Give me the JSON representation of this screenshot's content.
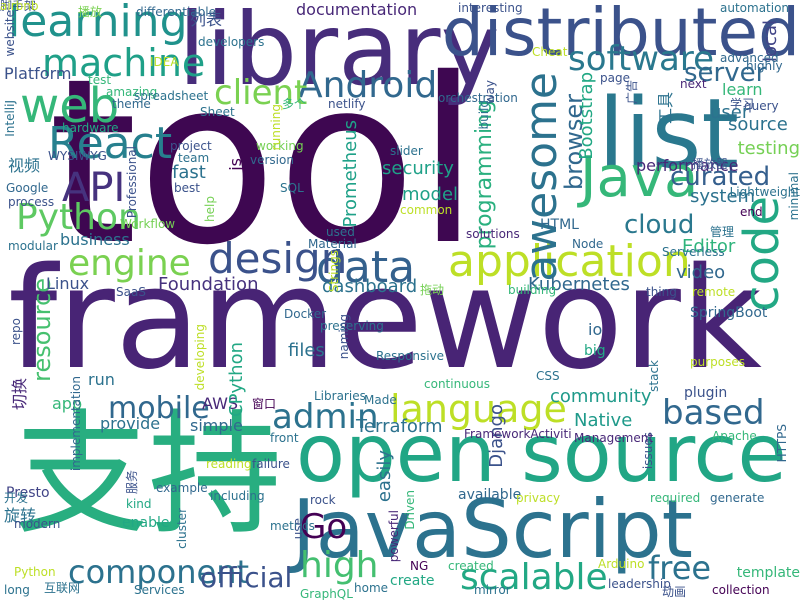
{
  "cloud": {
    "words": [
      {
        "text": "tool",
        "color": "#3e0751"
      },
      {
        "text": "framework",
        "color": "#482475"
      },
      {
        "text": "library",
        "color": "#472d7b"
      },
      {
        "text": "open source",
        "color": "#21a685"
      },
      {
        "text": "JavaScript",
        "color": "#2c728e"
      },
      {
        "text": "支持",
        "color": "#28ae80"
      },
      {
        "text": "distributed",
        "color": "#3b528b"
      },
      {
        "text": "list",
        "color": "#2a788e"
      },
      {
        "text": "application",
        "color": "#bddf26"
      },
      {
        "text": "Java",
        "color": "#35b779"
      },
      {
        "text": "learning",
        "color": "#20928c"
      },
      {
        "text": "machine",
        "color": "#1fa088"
      },
      {
        "text": "web",
        "color": "#35b779"
      },
      {
        "text": "React",
        "color": "#27808e"
      },
      {
        "text": "Android",
        "color": "#31688e"
      },
      {
        "text": "software",
        "color": "#2a788e"
      },
      {
        "text": "data",
        "color": "#34618d"
      },
      {
        "text": "design",
        "color": "#3b528b"
      },
      {
        "text": "engine",
        "color": "#7ad151"
      },
      {
        "text": "Python",
        "color": "#5ec962"
      },
      {
        "text": "API",
        "color": "#46327e"
      },
      {
        "text": "client",
        "color": "#7ad151"
      },
      {
        "text": "awesome",
        "color": "#2c728e"
      },
      {
        "text": "code",
        "color": "#22a884"
      },
      {
        "text": "language",
        "color": "#bddf26"
      },
      {
        "text": "based",
        "color": "#31688e"
      },
      {
        "text": "admin",
        "color": "#2c728e"
      },
      {
        "text": "mobile",
        "color": "#31688e"
      },
      {
        "text": "Go",
        "color": "#440154"
      },
      {
        "text": "high",
        "color": "#44bf70"
      },
      {
        "text": "scalable",
        "color": "#22a884"
      },
      {
        "text": "free",
        "color": "#2c728e"
      },
      {
        "text": "component",
        "color": "#2c728e"
      },
      {
        "text": "official",
        "color": "#3b528b"
      },
      {
        "text": "server",
        "color": "#31688e"
      },
      {
        "text": "curated",
        "color": "#355f8d"
      },
      {
        "text": "cloud",
        "color": "#2a788e"
      },
      {
        "text": "browser",
        "color": "#31688e"
      },
      {
        "text": "resource",
        "color": "#46c06f"
      },
      {
        "text": "Kubernetes",
        "color": "#31688e"
      },
      {
        "text": "dashboard",
        "color": "#2c728e"
      },
      {
        "text": "Foundation",
        "color": "#46327e"
      },
      {
        "text": "Terraform",
        "color": "#2c728e"
      },
      {
        "text": "Native",
        "color": "#1f9a8a"
      },
      {
        "text": "community",
        "color": "#1f9a8a"
      },
      {
        "text": "programming",
        "color": "#2ab07f"
      },
      {
        "text": "security",
        "color": "#1fa188"
      },
      {
        "text": "model",
        "color": "#1fa188"
      },
      {
        "text": "Prometheus",
        "color": "#1fa188"
      },
      {
        "text": "Editor",
        "color": "#2fb47c"
      },
      {
        "text": "video",
        "color": "#31688e"
      },
      {
        "text": "system",
        "color": "#2c728e"
      },
      {
        "text": "testing",
        "color": "#75d054"
      },
      {
        "text": "source",
        "color": "#2c728e"
      },
      {
        "text": "learn",
        "color": "#35b779"
      },
      {
        "text": "user",
        "color": "#2c728e"
      },
      {
        "text": "local",
        "color": "#414487"
      },
      {
        "text": "Bootstrap",
        "color": "#22a884"
      },
      {
        "text": "Platform",
        "color": "#3b528b"
      },
      {
        "text": "fast",
        "color": "#2c728e"
      },
      {
        "text": "视频",
        "color": "#2c728e"
      },
      {
        "text": "documentation",
        "color": "#482878"
      },
      {
        "text": "列表",
        "color": "#3b528b"
      },
      {
        "text": "Linux",
        "color": "#3b528b"
      },
      {
        "text": "business",
        "color": "#2c728e"
      },
      {
        "text": "run",
        "color": "#2c728e"
      },
      {
        "text": "app",
        "color": "#35b779"
      },
      {
        "text": "provide",
        "color": "#2c728e"
      },
      {
        "text": "AWS",
        "color": "#482878"
      },
      {
        "text": "CPython",
        "color": "#22a884"
      },
      {
        "text": "files",
        "color": "#2c728e"
      },
      {
        "text": "io",
        "color": "#31688e"
      },
      {
        "text": "big",
        "color": "#22a884"
      },
      {
        "text": "Django",
        "color": "#3b528b"
      },
      {
        "text": "HTML",
        "color": "#31688e"
      },
      {
        "text": "available",
        "color": "#31688e"
      },
      {
        "text": "enable",
        "color": "#22a884"
      },
      {
        "text": "easily",
        "color": "#2c728e"
      },
      {
        "text": "create",
        "color": "#22a884"
      },
      {
        "text": "template",
        "color": "#35b779"
      },
      {
        "text": "simple",
        "color": "#31688e"
      },
      {
        "text": "旋转",
        "color": "#2c728e"
      },
      {
        "text": "切换",
        "color": "#482878"
      },
      {
        "text": "Presto",
        "color": "#414487"
      },
      {
        "text": "SpringBoot",
        "color": "#31688e"
      },
      {
        "text": "plugin",
        "color": "#3b528b"
      },
      {
        "text": "performance",
        "color": "#482878"
      },
      {
        "text": "工具",
        "color": "#2c728e"
      },
      {
        "text": "js",
        "color": "#440154"
      },
      {
        "text": "播放",
        "color": "#7ad151"
      },
      {
        "text": "differentiable",
        "color": "#31688e"
      },
      {
        "text": "website",
        "color": "#3b528b"
      },
      {
        "text": "hardware",
        "color": "#22a884"
      },
      {
        "text": "IntelliJ",
        "color": "#2c728e"
      },
      {
        "text": "Google",
        "color": "#31688e"
      },
      {
        "text": "process",
        "color": "#3b528b"
      },
      {
        "text": "modular",
        "color": "#2c728e"
      },
      {
        "text": "test",
        "color": "#35b779"
      },
      {
        "text": "amazing",
        "color": "#35b779"
      },
      {
        "text": "theme",
        "color": "#31688e"
      },
      {
        "text": "IDEA",
        "color": "#bddf26"
      },
      {
        "text": "developers",
        "color": "#2c728e"
      },
      {
        "text": "Sheet",
        "color": "#2c728e"
      },
      {
        "text": "project",
        "color": "#3b528b"
      },
      {
        "text": "team",
        "color": "#2c728e"
      },
      {
        "text": "best",
        "color": "#3b528b"
      },
      {
        "text": "help",
        "color": "#75d054"
      },
      {
        "text": "version",
        "color": "#31688e"
      },
      {
        "text": "working",
        "color": "#75d054"
      },
      {
        "text": "SQL",
        "color": "#2c728e"
      },
      {
        "text": "多个",
        "color": "#35b779"
      },
      {
        "text": "netlify",
        "color": "#3b528b"
      },
      {
        "text": "orchestration",
        "color": "#31688e"
      },
      {
        "text": "slider",
        "color": "#2c728e"
      },
      {
        "text": "common",
        "color": "#bddf26"
      },
      {
        "text": "used",
        "color": "#2c728e"
      },
      {
        "text": "Material",
        "color": "#31688e"
      },
      {
        "text": "solutions",
        "color": "#482878"
      },
      {
        "text": "Strings",
        "color": "#bddf26"
      },
      {
        "text": "SaaS",
        "color": "#3b528b"
      },
      {
        "text": "Docker",
        "color": "#31688e"
      },
      {
        "text": "拖动",
        "color": "#75d054"
      },
      {
        "text": "building",
        "color": "#35b779"
      },
      {
        "text": "thing",
        "color": "#3b528b"
      },
      {
        "text": "remote",
        "color": "#bddf26"
      },
      {
        "text": "管理",
        "color": "#2c728e"
      },
      {
        "text": "Node",
        "color": "#31688e"
      },
      {
        "text": "end",
        "color": "#440154"
      },
      {
        "text": "query",
        "color": "#3b528b"
      },
      {
        "text": "next",
        "color": "#482878"
      },
      {
        "text": "advanced",
        "color": "#31688e"
      },
      {
        "text": "highly",
        "color": "#31688e"
      },
      {
        "text": "minimal",
        "color": "#2c728e"
      },
      {
        "text": "Lightweight",
        "color": "#2c728e"
      },
      {
        "text": "播放器",
        "color": "#3b528b"
      },
      {
        "text": "广告",
        "color": "#3b528b"
      },
      {
        "text": "Serverless",
        "color": "#2c728e"
      },
      {
        "text": "purposes",
        "color": "#bddf26"
      },
      {
        "text": "repo",
        "color": "#3b528b"
      },
      {
        "text": "Responsive",
        "color": "#2c728e"
      },
      {
        "text": "continuous",
        "color": "#35b779"
      },
      {
        "text": "CSS",
        "color": "#2c728e"
      },
      {
        "text": "stack",
        "color": "#2c728e"
      },
      {
        "text": "preserving",
        "color": "#2c728e"
      },
      {
        "text": "naming",
        "color": "#3b528b"
      },
      {
        "text": "developing",
        "color": "#bddf26"
      },
      {
        "text": "implementation",
        "color": "#31688e"
      },
      {
        "text": "Libraries",
        "color": "#2c728e"
      },
      {
        "text": "Made",
        "color": "#2c728e"
      },
      {
        "text": "窗口",
        "color": "#440154"
      },
      {
        "text": "front",
        "color": "#2c728e"
      },
      {
        "text": "failure",
        "color": "#3b528b"
      },
      {
        "text": "reading",
        "color": "#bddf26"
      },
      {
        "text": "issues",
        "color": "#3b528b"
      },
      {
        "text": "HTTPS",
        "color": "#31688e"
      },
      {
        "text": "Apache",
        "color": "#35b779"
      },
      {
        "text": "Management",
        "color": "#482878"
      },
      {
        "text": "FrameworkActiviti",
        "color": "#482878"
      },
      {
        "text": "including",
        "color": "#2c728e"
      },
      {
        "text": "example",
        "color": "#31688e"
      },
      {
        "text": "kind",
        "color": "#22a884"
      },
      {
        "text": "服务",
        "color": "#3b528b"
      },
      {
        "text": "开发",
        "color": "#2c728e"
      },
      {
        "text": "rock",
        "color": "#3b528b"
      },
      {
        "text": "privacy",
        "color": "#bddf26"
      },
      {
        "text": "required",
        "color": "#35b779"
      },
      {
        "text": "generate",
        "color": "#31688e"
      },
      {
        "text": "Driven",
        "color": "#35b779"
      },
      {
        "text": "powerful",
        "color": "#482878"
      },
      {
        "text": "cluster",
        "color": "#2c728e"
      },
      {
        "text": "metrics",
        "color": "#2c728e"
      },
      {
        "text": "use",
        "color": "#3b528b"
      },
      {
        "text": "modern",
        "color": "#3b528b"
      },
      {
        "text": "Python",
        "color": "#bddf26"
      },
      {
        "text": "long",
        "color": "#2c728e"
      },
      {
        "text": "互联网",
        "color": "#2c728e"
      },
      {
        "text": "Services",
        "color": "#2c728e"
      },
      {
        "text": "GraphQL",
        "color": "#35b779"
      },
      {
        "text": "home",
        "color": "#2c728e"
      },
      {
        "text": "NG",
        "color": "#440154"
      },
      {
        "text": "created",
        "color": "#35b779"
      },
      {
        "text": "mirror",
        "color": "#2c728e"
      },
      {
        "text": "Arduino",
        "color": "#bddf26"
      },
      {
        "text": "leadership",
        "color": "#3b528b"
      },
      {
        "text": "动画",
        "color": "#3b528b"
      },
      {
        "text": "collection",
        "color": "#440154"
      },
      {
        "text": "automation",
        "color": "#2c728e"
      },
      {
        "text": "interesting",
        "color": "#3b528b"
      },
      {
        "text": "way",
        "color": "#3b528b"
      },
      {
        "text": "Cheat",
        "color": "#bddf26"
      },
      {
        "text": "running",
        "color": "#bddf26"
      },
      {
        "text": "build",
        "color": "#2c728e"
      },
      {
        "text": "page",
        "color": "#3b528b"
      },
      {
        "text": "WYSIWYG",
        "color": "#3b528b"
      },
      {
        "text": "Professional",
        "color": "#3b528b"
      },
      {
        "text": "Workflow",
        "color": "#75d054"
      },
      {
        "text": "spreadsheet",
        "color": "#2c728e"
      },
      {
        "text": "学习",
        "color": "#3b528b"
      },
      {
        "text": "脚手架",
        "color": "#3b528b"
      },
      {
        "text": "airbnb",
        "color": "#bddf26"
      }
    ]
  }
}
